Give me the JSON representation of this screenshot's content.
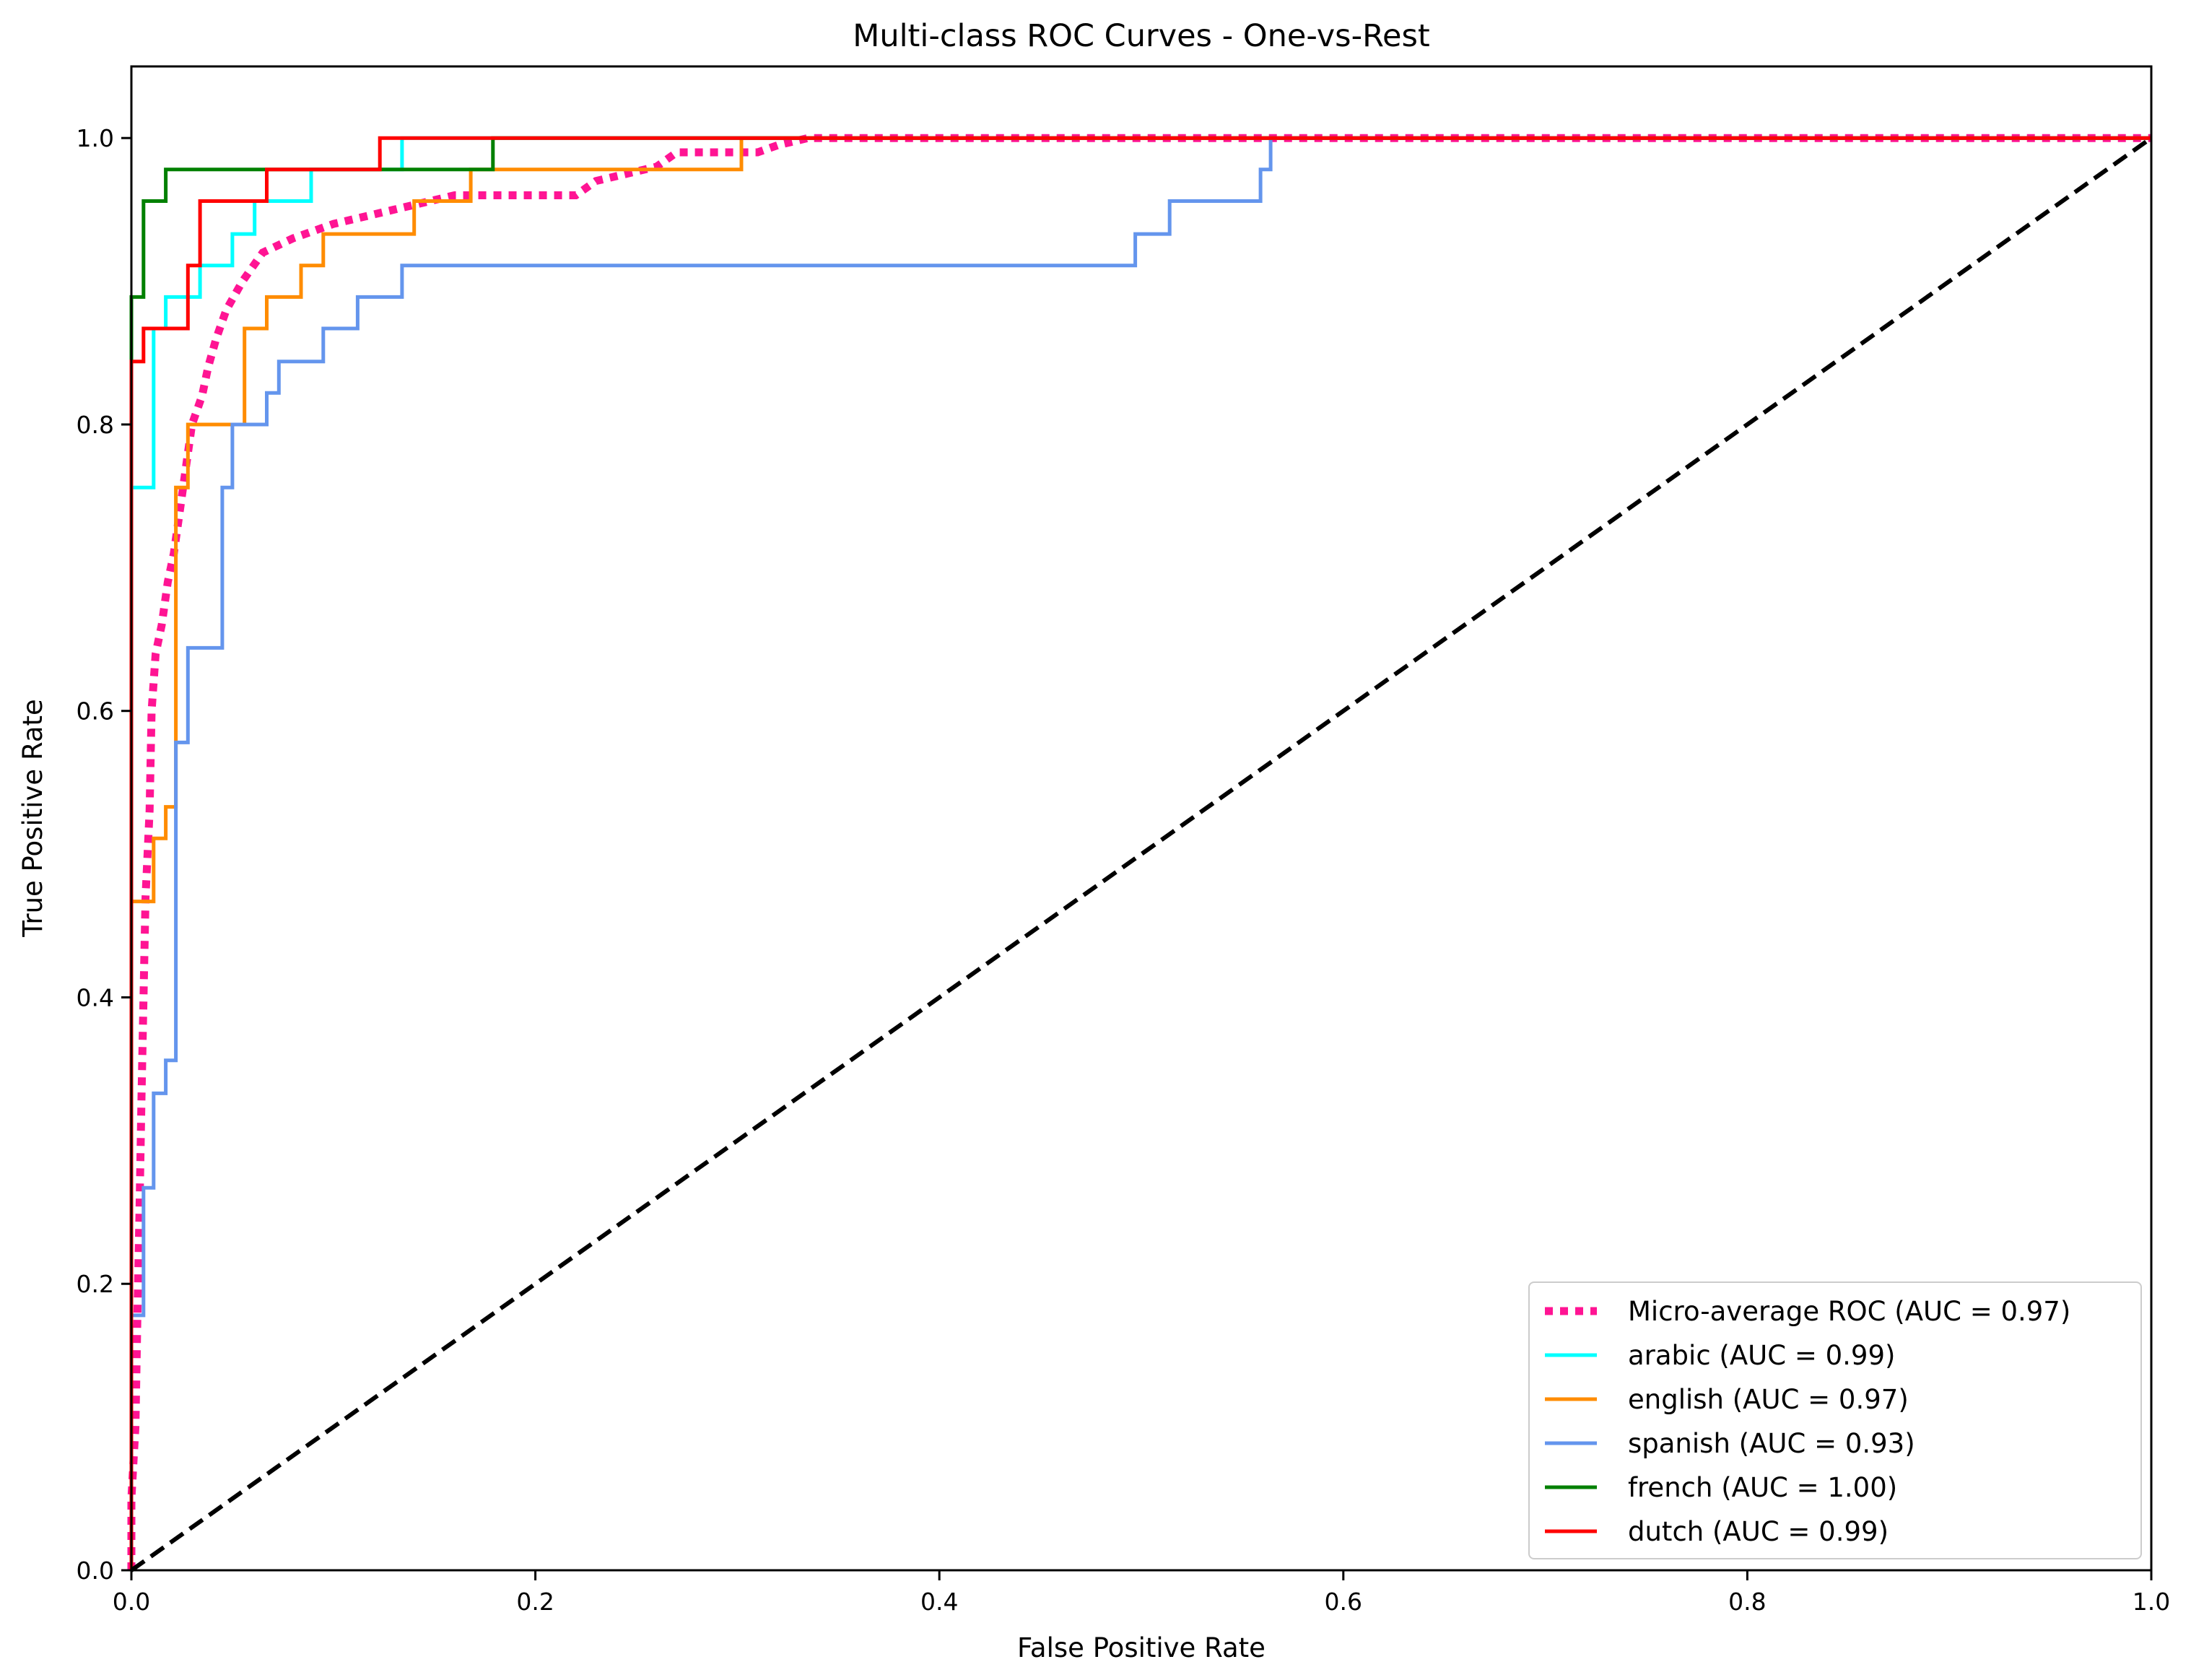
{
  "chart_data": {
    "type": "line",
    "title": "Multi-class ROC Curves - One-vs-Rest",
    "xlabel": "False Positive Rate",
    "ylabel": "True Positive Rate",
    "xlim": [
      0.0,
      1.0
    ],
    "ylim": [
      0.0,
      1.05
    ],
    "xticks": [
      "0.0",
      "0.2",
      "0.4",
      "0.6",
      "0.8",
      "1.0"
    ],
    "yticks": [
      "0.0",
      "0.2",
      "0.4",
      "0.6",
      "0.8",
      "1.0"
    ],
    "grid": false,
    "legend_position": "lower-right",
    "chance_line": {
      "style": "dashed",
      "color": "#000000",
      "points": [
        [
          0,
          0
        ],
        [
          1,
          1
        ]
      ]
    },
    "series": [
      {
        "name": "Micro-average ROC (AUC = 0.97)",
        "color": "#ff1493",
        "style": "dotted",
        "points": [
          [
            0,
            0
          ],
          [
            0,
            0.05
          ],
          [
            0.002,
            0.1
          ],
          [
            0.003,
            0.18
          ],
          [
            0.004,
            0.25
          ],
          [
            0.005,
            0.33
          ],
          [
            0.006,
            0.4
          ],
          [
            0.007,
            0.47
          ],
          [
            0.009,
            0.53
          ],
          [
            0.01,
            0.6
          ],
          [
            0.012,
            0.64
          ],
          [
            0.015,
            0.66
          ],
          [
            0.018,
            0.69
          ],
          [
            0.021,
            0.71
          ],
          [
            0.024,
            0.74
          ],
          [
            0.027,
            0.77
          ],
          [
            0.03,
            0.8
          ],
          [
            0.035,
            0.82
          ],
          [
            0.038,
            0.84
          ],
          [
            0.042,
            0.86
          ],
          [
            0.047,
            0.88
          ],
          [
            0.055,
            0.9
          ],
          [
            0.065,
            0.92
          ],
          [
            0.08,
            0.93
          ],
          [
            0.1,
            0.94
          ],
          [
            0.13,
            0.95
          ],
          [
            0.16,
            0.96
          ],
          [
            0.22,
            0.96
          ],
          [
            0.23,
            0.97
          ],
          [
            0.26,
            0.98
          ],
          [
            0.27,
            0.99
          ],
          [
            0.31,
            0.99
          ],
          [
            0.32,
            0.995
          ],
          [
            0.335,
            1.0
          ],
          [
            1.0,
            1.0
          ]
        ]
      },
      {
        "name": "arabic (AUC = 0.99)",
        "color": "#00ffff",
        "style": "solid",
        "points": [
          [
            0,
            0
          ],
          [
            0,
            0.756
          ],
          [
            0.011,
            0.756
          ],
          [
            0.011,
            0.867
          ],
          [
            0.017,
            0.867
          ],
          [
            0.017,
            0.889
          ],
          [
            0.034,
            0.889
          ],
          [
            0.034,
            0.911
          ],
          [
            0.05,
            0.911
          ],
          [
            0.05,
            0.933
          ],
          [
            0.061,
            0.933
          ],
          [
            0.061,
            0.956
          ],
          [
            0.089,
            0.956
          ],
          [
            0.089,
            0.978
          ],
          [
            0.134,
            0.978
          ],
          [
            0.134,
            1.0
          ],
          [
            1.0,
            1.0
          ]
        ]
      },
      {
        "name": "english (AUC = 0.97)",
        "color": "#ff8c00",
        "style": "solid",
        "points": [
          [
            0,
            0
          ],
          [
            0,
            0.467
          ],
          [
            0.011,
            0.467
          ],
          [
            0.011,
            0.511
          ],
          [
            0.017,
            0.511
          ],
          [
            0.017,
            0.533
          ],
          [
            0.022,
            0.533
          ],
          [
            0.022,
            0.578
          ],
          [
            0.022,
            0.756
          ],
          [
            0.028,
            0.756
          ],
          [
            0.028,
            0.8
          ],
          [
            0.056,
            0.8
          ],
          [
            0.056,
            0.867
          ],
          [
            0.067,
            0.867
          ],
          [
            0.067,
            0.889
          ],
          [
            0.084,
            0.889
          ],
          [
            0.084,
            0.911
          ],
          [
            0.095,
            0.911
          ],
          [
            0.095,
            0.933
          ],
          [
            0.14,
            0.933
          ],
          [
            0.14,
            0.956
          ],
          [
            0.168,
            0.956
          ],
          [
            0.168,
            0.978
          ],
          [
            0.302,
            0.978
          ],
          [
            0.302,
            1.0
          ],
          [
            1.0,
            1.0
          ]
        ]
      },
      {
        "name": "spanish (AUC = 0.93)",
        "color": "#6495ed",
        "style": "solid",
        "points": [
          [
            0,
            0
          ],
          [
            0,
            0.178
          ],
          [
            0.006,
            0.178
          ],
          [
            0.006,
            0.267
          ],
          [
            0.011,
            0.267
          ],
          [
            0.011,
            0.333
          ],
          [
            0.017,
            0.333
          ],
          [
            0.017,
            0.356
          ],
          [
            0.022,
            0.356
          ],
          [
            0.022,
            0.578
          ],
          [
            0.028,
            0.578
          ],
          [
            0.028,
            0.644
          ],
          [
            0.045,
            0.644
          ],
          [
            0.045,
            0.756
          ],
          [
            0.05,
            0.756
          ],
          [
            0.05,
            0.8
          ],
          [
            0.067,
            0.8
          ],
          [
            0.067,
            0.822
          ],
          [
            0.073,
            0.822
          ],
          [
            0.073,
            0.844
          ],
          [
            0.095,
            0.844
          ],
          [
            0.095,
            0.867
          ],
          [
            0.112,
            0.867
          ],
          [
            0.112,
            0.889
          ],
          [
            0.134,
            0.889
          ],
          [
            0.134,
            0.911
          ],
          [
            0.497,
            0.911
          ],
          [
            0.497,
            0.933
          ],
          [
            0.514,
            0.933
          ],
          [
            0.514,
            0.956
          ],
          [
            0.559,
            0.956
          ],
          [
            0.559,
            0.978
          ],
          [
            0.564,
            0.978
          ],
          [
            0.564,
            1.0
          ],
          [
            1.0,
            1.0
          ]
        ]
      },
      {
        "name": "french (AUC = 1.00)",
        "color": "#008000",
        "style": "solid",
        "points": [
          [
            0,
            0
          ],
          [
            0,
            0.889
          ],
          [
            0.006,
            0.889
          ],
          [
            0.006,
            0.956
          ],
          [
            0.017,
            0.956
          ],
          [
            0.017,
            0.978
          ],
          [
            0.179,
            0.978
          ],
          [
            0.179,
            1.0
          ],
          [
            1.0,
            1.0
          ]
        ]
      },
      {
        "name": "dutch (AUC = 0.99)",
        "color": "#ff0000",
        "style": "solid",
        "points": [
          [
            0,
            0
          ],
          [
            0,
            0.844
          ],
          [
            0.006,
            0.844
          ],
          [
            0.006,
            0.867
          ],
          [
            0.028,
            0.867
          ],
          [
            0.028,
            0.911
          ],
          [
            0.034,
            0.911
          ],
          [
            0.034,
            0.956
          ],
          [
            0.067,
            0.956
          ],
          [
            0.067,
            0.978
          ],
          [
            0.123,
            0.978
          ],
          [
            0.123,
            1.0
          ],
          [
            1.0,
            1.0
          ]
        ]
      }
    ]
  }
}
